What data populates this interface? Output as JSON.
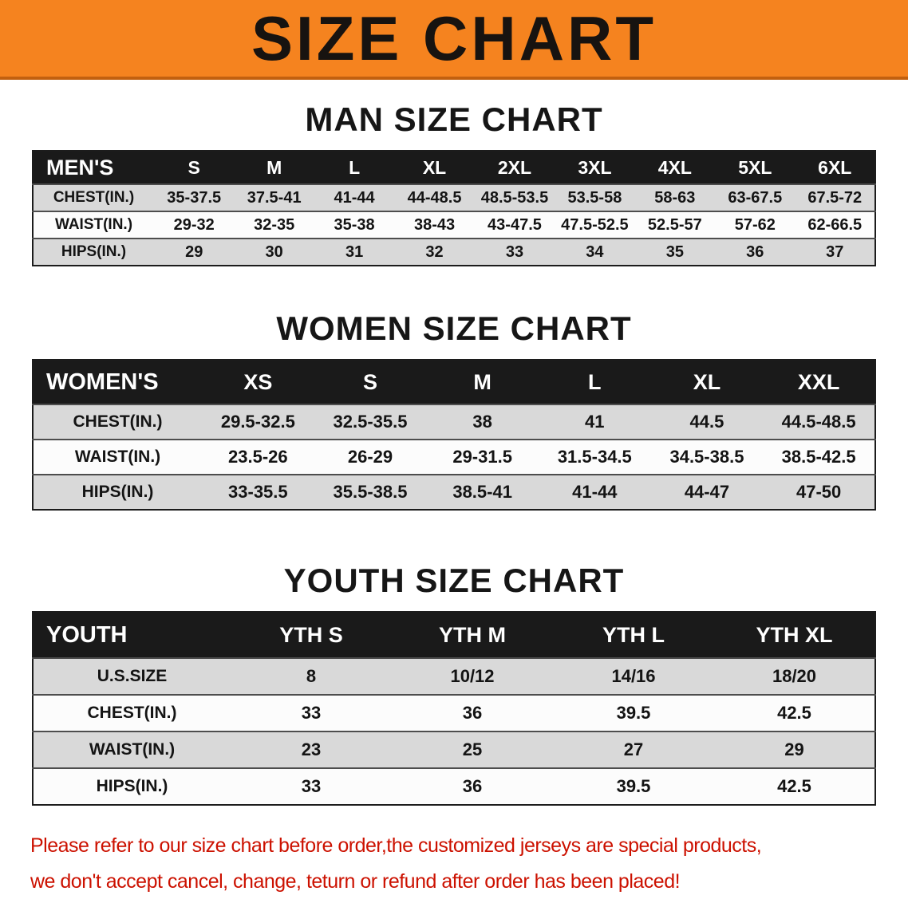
{
  "banner": {
    "title": "SIZE CHART"
  },
  "colors": {
    "banner_bg": "#F5831F",
    "banner_edge": "#C2600F",
    "header_bg": "#1A1A1A",
    "row_alt": "#D9D9D9",
    "row_main": "#FCFCFC",
    "disclaimer_color": "#CC1100"
  },
  "men": {
    "heading": "MAN SIZE CHART",
    "table": {
      "header_label": "MEN'S",
      "columns": [
        "S",
        "M",
        "L",
        "XL",
        "2XL",
        "3XL",
        "4XL",
        "5XL",
        "6XL"
      ],
      "rows": [
        {
          "label": "CHEST(IN.)",
          "values": [
            "35-37.5",
            "37.5-41",
            "41-44",
            "44-48.5",
            "48.5-53.5",
            "53.5-58",
            "58-63",
            "63-67.5",
            "67.5-72"
          ]
        },
        {
          "label": "WAIST(IN.)",
          "values": [
            "29-32",
            "32-35",
            "35-38",
            "38-43",
            "43-47.5",
            "47.5-52.5",
            "52.5-57",
            "57-62",
            "62-66.5"
          ]
        },
        {
          "label": "HIPS(IN.)",
          "values": [
            "29",
            "30",
            "31",
            "32",
            "33",
            "34",
            "35",
            "36",
            "37"
          ]
        }
      ]
    }
  },
  "women": {
    "heading": "WOMEN SIZE CHART",
    "table": {
      "header_label": "WOMEN'S",
      "columns": [
        "XS",
        "S",
        "M",
        "L",
        "XL",
        "XXL"
      ],
      "rows": [
        {
          "label": "CHEST(IN.)",
          "values": [
            "29.5-32.5",
            "32.5-35.5",
            "38",
            "41",
            "44.5",
            "44.5-48.5"
          ]
        },
        {
          "label": "WAIST(IN.)",
          "values": [
            "23.5-26",
            "26-29",
            "29-31.5",
            "31.5-34.5",
            "34.5-38.5",
            "38.5-42.5"
          ]
        },
        {
          "label": "HIPS(IN.)",
          "values": [
            "33-35.5",
            "35.5-38.5",
            "38.5-41",
            "41-44",
            "44-47",
            "47-50"
          ]
        }
      ]
    }
  },
  "youth": {
    "heading": "YOUTH SIZE CHART",
    "table": {
      "header_label": "YOUTH",
      "columns": [
        "YTH S",
        "YTH M",
        "YTH L",
        "YTH XL"
      ],
      "rows": [
        {
          "label": "U.S.SIZE",
          "values": [
            "8",
            "10/12",
            "14/16",
            "18/20"
          ]
        },
        {
          "label": "CHEST(IN.)",
          "values": [
            "33",
            "36",
            "39.5",
            "42.5"
          ]
        },
        {
          "label": "WAIST(IN.)",
          "values": [
            "23",
            "25",
            "27",
            "29"
          ]
        },
        {
          "label": "HIPS(IN.)",
          "values": [
            "33",
            "36",
            "39.5",
            "42.5"
          ]
        }
      ]
    }
  },
  "disclaimer": {
    "line1": "Please refer to our size chart before order,the customized jerseys are special products,",
    "line2": "we don't accept cancel, change, teturn or refund after order has been placed!"
  }
}
